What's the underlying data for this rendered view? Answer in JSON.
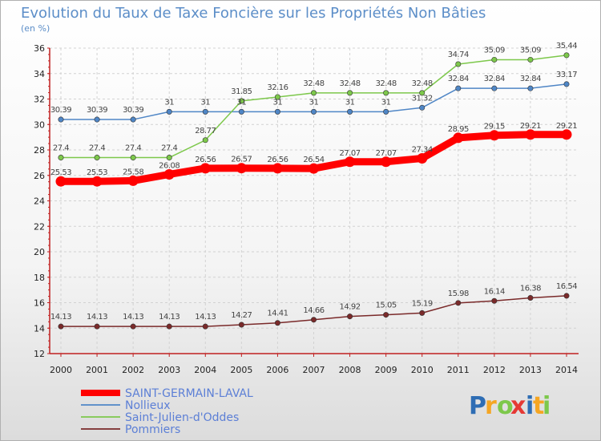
{
  "chart_data": {
    "type": "line",
    "title": "Evolution du Taux de Taxe Foncière sur les Propriétés Non Bâties",
    "subtitle": "(en %)",
    "x": [
      "2000",
      "2001",
      "2002",
      "2003",
      "2004",
      "2005",
      "2006",
      "2007",
      "2008",
      "2009",
      "2010",
      "2011",
      "2012",
      "2013",
      "2014"
    ],
    "ylim": [
      12,
      36
    ],
    "yticks": [
      12,
      14,
      16,
      18,
      20,
      22,
      24,
      26,
      28,
      30,
      32,
      34,
      36
    ],
    "grid": true,
    "legend_position": "bottom-left",
    "series": [
      {
        "name": "SAINT-GERMAIN-LAVAL",
        "color": "#ff0000",
        "values": [
          25.53,
          25.53,
          25.58,
          26.08,
          26.56,
          26.57,
          26.56,
          26.54,
          27.07,
          27.07,
          27.34,
          28.95,
          29.15,
          29.21,
          29.21
        ]
      },
      {
        "name": "Nollieux",
        "color": "#4f86c6",
        "values": [
          30.39,
          30.39,
          30.39,
          31,
          31,
          31,
          31,
          31,
          31,
          31,
          31.32,
          32.84,
          32.84,
          32.84,
          33.17
        ]
      },
      {
        "name": "Saint-Julien-d'Oddes",
        "color": "#7dc84b",
        "values": [
          27.4,
          27.4,
          27.4,
          27.4,
          28.77,
          31.85,
          32.16,
          32.48,
          32.48,
          32.48,
          32.48,
          34.74,
          35.09,
          35.09,
          35.44
        ]
      },
      {
        "name": "Pommiers",
        "color": "#7a2a2a",
        "values": [
          14.13,
          14.13,
          14.13,
          14.13,
          14.13,
          14.27,
          14.41,
          14.66,
          14.92,
          15.05,
          15.19,
          15.98,
          16.14,
          16.38,
          16.54
        ]
      }
    ]
  },
  "logo": {
    "p": "P",
    "r": "r",
    "o": "o",
    "x": "x",
    "i": "i",
    "t": "t",
    "i2": "i"
  }
}
